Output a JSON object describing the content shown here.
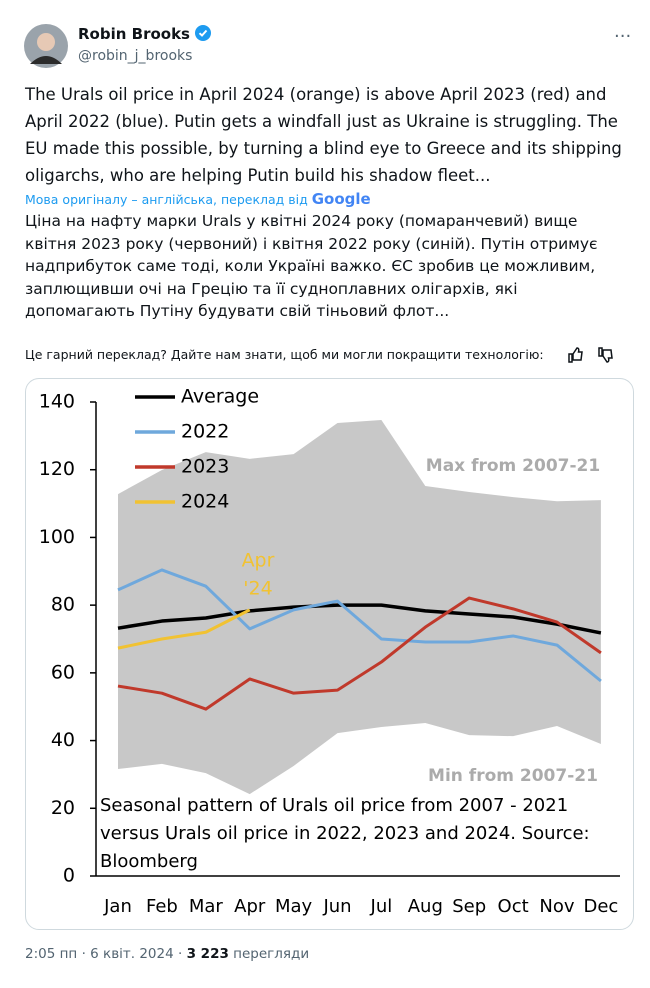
{
  "author": {
    "name": "Robin Brooks",
    "handle": "@robin_j_brooks"
  },
  "tweet": {
    "lines": [
      "The Urals oil price in April 2024 (orange) is above April 2023 (red) and",
      "April 2022 (blue). Putin gets a windfall just as Ukraine is struggling. The",
      "EU made this possible, by turning a blind eye to Greece and its shipping",
      "oligarchs, who are helping Putin build his shadow fleet..."
    ]
  },
  "translate": {
    "label": "Мова оригіналу – англійська, переклад від",
    "logo": "Google"
  },
  "translation": {
    "lines": [
      "Ціна на нафту марки Urals у квітні 2024 року (помаранчевий) вище",
      "квітня 2023 року (червоний) і квітня 2022 року (синій). Путін отримує",
      "надприбуток саме тоді, коли Україні важко. ЄС зробив це можливим,",
      "заплющивши очі на Грецію та її судноплавних олігархів, які",
      "допомагають Путіну будувати свій тіньовий флот..."
    ]
  },
  "feedback": "Це гарний переклад? Дайте нам знати, щоб ми могли покращити технологію:",
  "footer": {
    "parts": [
      "2:05 пп",
      "·",
      "6 квіт. 2024",
      "·",
      "3 223",
      "перегляди"
    ]
  },
  "chart_data": {
    "type": "line",
    "categories": [
      "Jan",
      "Feb",
      "Mar",
      "Apr",
      "May",
      "Jun",
      "Jul",
      "Aug",
      "Sep",
      "Oct",
      "Nov",
      "Dec"
    ],
    "series": [
      {
        "name": "Average",
        "color": "#000000",
        "values": [
          73.2,
          75.3,
          76.2,
          78.3,
          79.4,
          80,
          80,
          78.3,
          77.4,
          76.5,
          74.4,
          71.8
        ]
      },
      {
        "name": "2022",
        "color": "#6fa8dc",
        "values": [
          84.5,
          90.4,
          85.6,
          73,
          78.6,
          81.2,
          70,
          69.1,
          69.1,
          70.9,
          68.2,
          57.6
        ]
      },
      {
        "name": "2023",
        "color": "#c0392b",
        "values": [
          56.1,
          54,
          49.3,
          58.2,
          54,
          54.9,
          63.2,
          73.5,
          82.1,
          78.9,
          75,
          65.9
        ]
      },
      {
        "name": "2024",
        "color": "#f1c232",
        "values": [
          67.3,
          70,
          72,
          78.6,
          null,
          null,
          null,
          null,
          null,
          null,
          null,
          null
        ]
      }
    ],
    "band": {
      "color": "#c8c8c8",
      "upper": [
        112.8,
        119.9,
        125.2,
        123.2,
        124.6,
        133.8,
        134.7,
        115.2,
        113.4,
        111.9,
        110.7,
        111
      ],
      "lower": [
        31.6,
        33.1,
        30.4,
        24.2,
        32.5,
        42.2,
        44,
        45.2,
        41.6,
        41.3,
        44.3,
        39
      ],
      "upper_label": "Max from 2007-21",
      "lower_label": "Min from 2007-21"
    },
    "annotation": {
      "lines": [
        "Apr",
        "'24"
      ],
      "color": "#f1c232"
    },
    "note": [
      "Seasonal pattern of Urals oil price from 2007 - 2021",
      "versus Urals oil price in 2022, 2023 and 2024. Source:",
      "Bloomberg"
    ],
    "ylim": [
      0,
      140
    ],
    "yticks": [
      0,
      20,
      40,
      60,
      80,
      100,
      120,
      140
    ]
  }
}
